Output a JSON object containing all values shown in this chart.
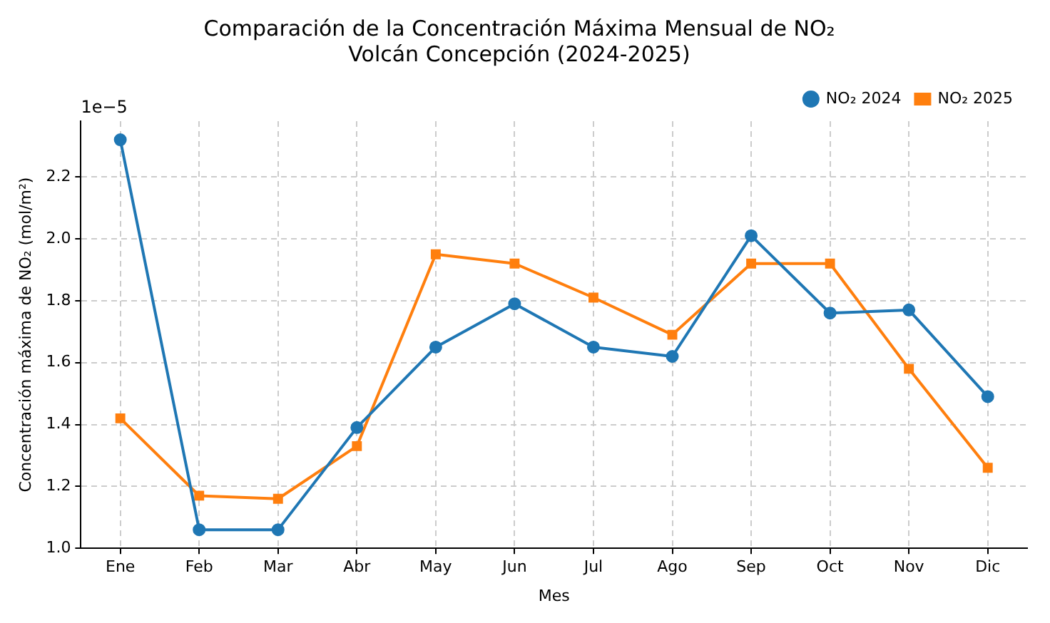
{
  "chart_data": {
    "type": "line",
    "title": "Comparación de la Concentración Máxima Mensual de NO₂\nVolcán Concepción (2024-2025)",
    "xlabel": "Mes",
    "ylabel": "Concentración máxima de NO₂ (mol/m²)",
    "categories": [
      "Ene",
      "Feb",
      "Mar",
      "Abr",
      "May",
      "Jun",
      "Jul",
      "Ago",
      "Sep",
      "Oct",
      "Nov",
      "Dic"
    ],
    "series": [
      {
        "name": "NO₂ 2024",
        "color": "#1f77b4",
        "marker": "circle",
        "values": [
          2.32,
          1.06,
          1.06,
          1.39,
          1.65,
          1.79,
          1.65,
          1.62,
          2.01,
          1.76,
          1.77,
          1.49
        ]
      },
      {
        "name": "NO₂ 2025",
        "color": "#ff7f0e",
        "marker": "square",
        "values": [
          1.42,
          1.17,
          1.16,
          1.33,
          1.95,
          1.92,
          1.81,
          1.69,
          1.92,
          1.92,
          1.58,
          1.26
        ]
      }
    ],
    "ylim": [
      1.0,
      2.38
    ],
    "yticks": [
      {
        "value": 1.0,
        "label": "1.0"
      },
      1.2,
      1.4,
      1.6,
      1.8,
      {
        "value": 2.0,
        "label": "2.0"
      },
      2.2
    ],
    "grid": true,
    "legend": "top right",
    "line_style": "solid",
    "annotations": [
      "1e−5"
    ]
  }
}
